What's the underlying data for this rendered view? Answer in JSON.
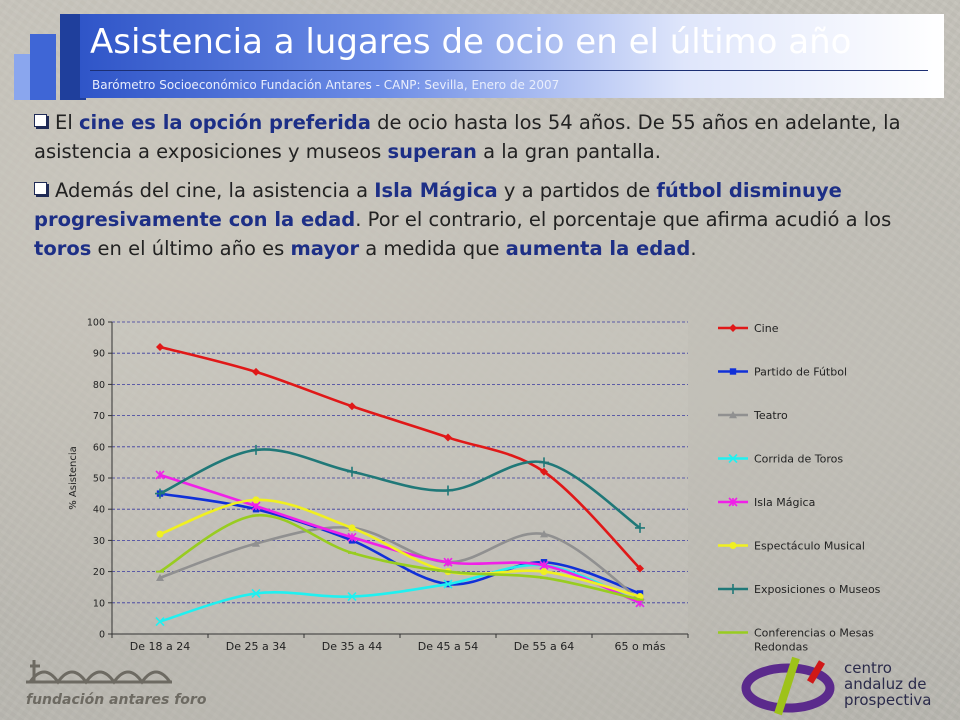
{
  "header": {
    "title": "Asistencia a lugares de ocio en el último año",
    "subtitle": "Barómetro Socioeconómico Fundación Antares - CANP: Sevilla, Enero de 2007"
  },
  "bullets": [
    {
      "parts": [
        {
          "t": "El ",
          "b": false
        },
        {
          "t": "cine es la opción preferida",
          "b": true
        },
        {
          "t": " de ocio hasta los 54 años. De 55 años en adelante, la asistencia a exposiciones y museos ",
          "b": false
        },
        {
          "t": "superan",
          "b": true
        },
        {
          "t": " a la gran pantalla.",
          "b": false
        }
      ]
    },
    {
      "parts": [
        {
          "t": "Además del cine, la asistencia a ",
          "b": false
        },
        {
          "t": "Isla Mágica",
          "b": true
        },
        {
          "t": " y a partidos de ",
          "b": false
        },
        {
          "t": "fútbol disminuye progresivamente con la edad",
          "b": true
        },
        {
          "t": ". Por el contrario, el porcentaje que afirma acudió a los ",
          "b": false
        },
        {
          "t": "toros",
          "b": true
        },
        {
          "t": " en el último año es ",
          "b": false
        },
        {
          "t": "mayor",
          "b": true
        },
        {
          "t": " a medida que ",
          "b": false
        },
        {
          "t": "aumenta la edad",
          "b": true
        },
        {
          "t": ".",
          "b": false
        }
      ]
    }
  ],
  "chart_data": {
    "type": "line",
    "ylabel": "% Asistencia",
    "ylim": [
      0,
      100
    ],
    "yticks": [
      0,
      10,
      20,
      30,
      40,
      50,
      60,
      70,
      80,
      90,
      100
    ],
    "grid": true,
    "legend_position": "right",
    "categories": [
      "De 18 a 24",
      "De 25  a 34",
      "De 35 a 44",
      "De 45 a 54",
      "De 55 a 64",
      "65 o más"
    ],
    "series": [
      {
        "name": "Cine",
        "color": "#e01818",
        "marker": "diamond",
        "values": [
          92,
          84,
          73,
          63,
          52,
          21
        ]
      },
      {
        "name": "Partido de Fútbol",
        "color": "#1030d8",
        "marker": "square",
        "values": [
          45,
          40,
          30,
          16,
          23,
          13
        ]
      },
      {
        "name": "Teatro",
        "color": "#909090",
        "marker": "triangle",
        "values": [
          18,
          29,
          34,
          23,
          32,
          11
        ]
      },
      {
        "name": "Corrida de Toros",
        "color": "#20f0f0",
        "marker": "x",
        "values": [
          4,
          13,
          12,
          16,
          22,
          10
        ]
      },
      {
        "name": "Isla Mágica",
        "color": "#f020e8",
        "marker": "star",
        "values": [
          51,
          41,
          31,
          23,
          22,
          10
        ]
      },
      {
        "name": "Espectáculo Musical",
        "color": "#f0f020",
        "marker": "circle",
        "values": [
          32,
          43,
          34,
          20,
          20,
          12
        ]
      },
      {
        "name": "Exposiciones o Museos",
        "color": "#207878",
        "marker": "plus",
        "values": [
          45,
          59,
          52,
          46,
          55,
          34
        ]
      },
      {
        "name": "Conferencias o Mesas Redondas",
        "color": "#98cc20",
        "marker": "dash",
        "values": [
          20,
          38,
          26,
          20,
          18,
          11
        ]
      }
    ]
  },
  "footer": {
    "foundation_text": "fundación antares foro",
    "cap_text": "centro\nandaluz de\nprospectiva"
  }
}
